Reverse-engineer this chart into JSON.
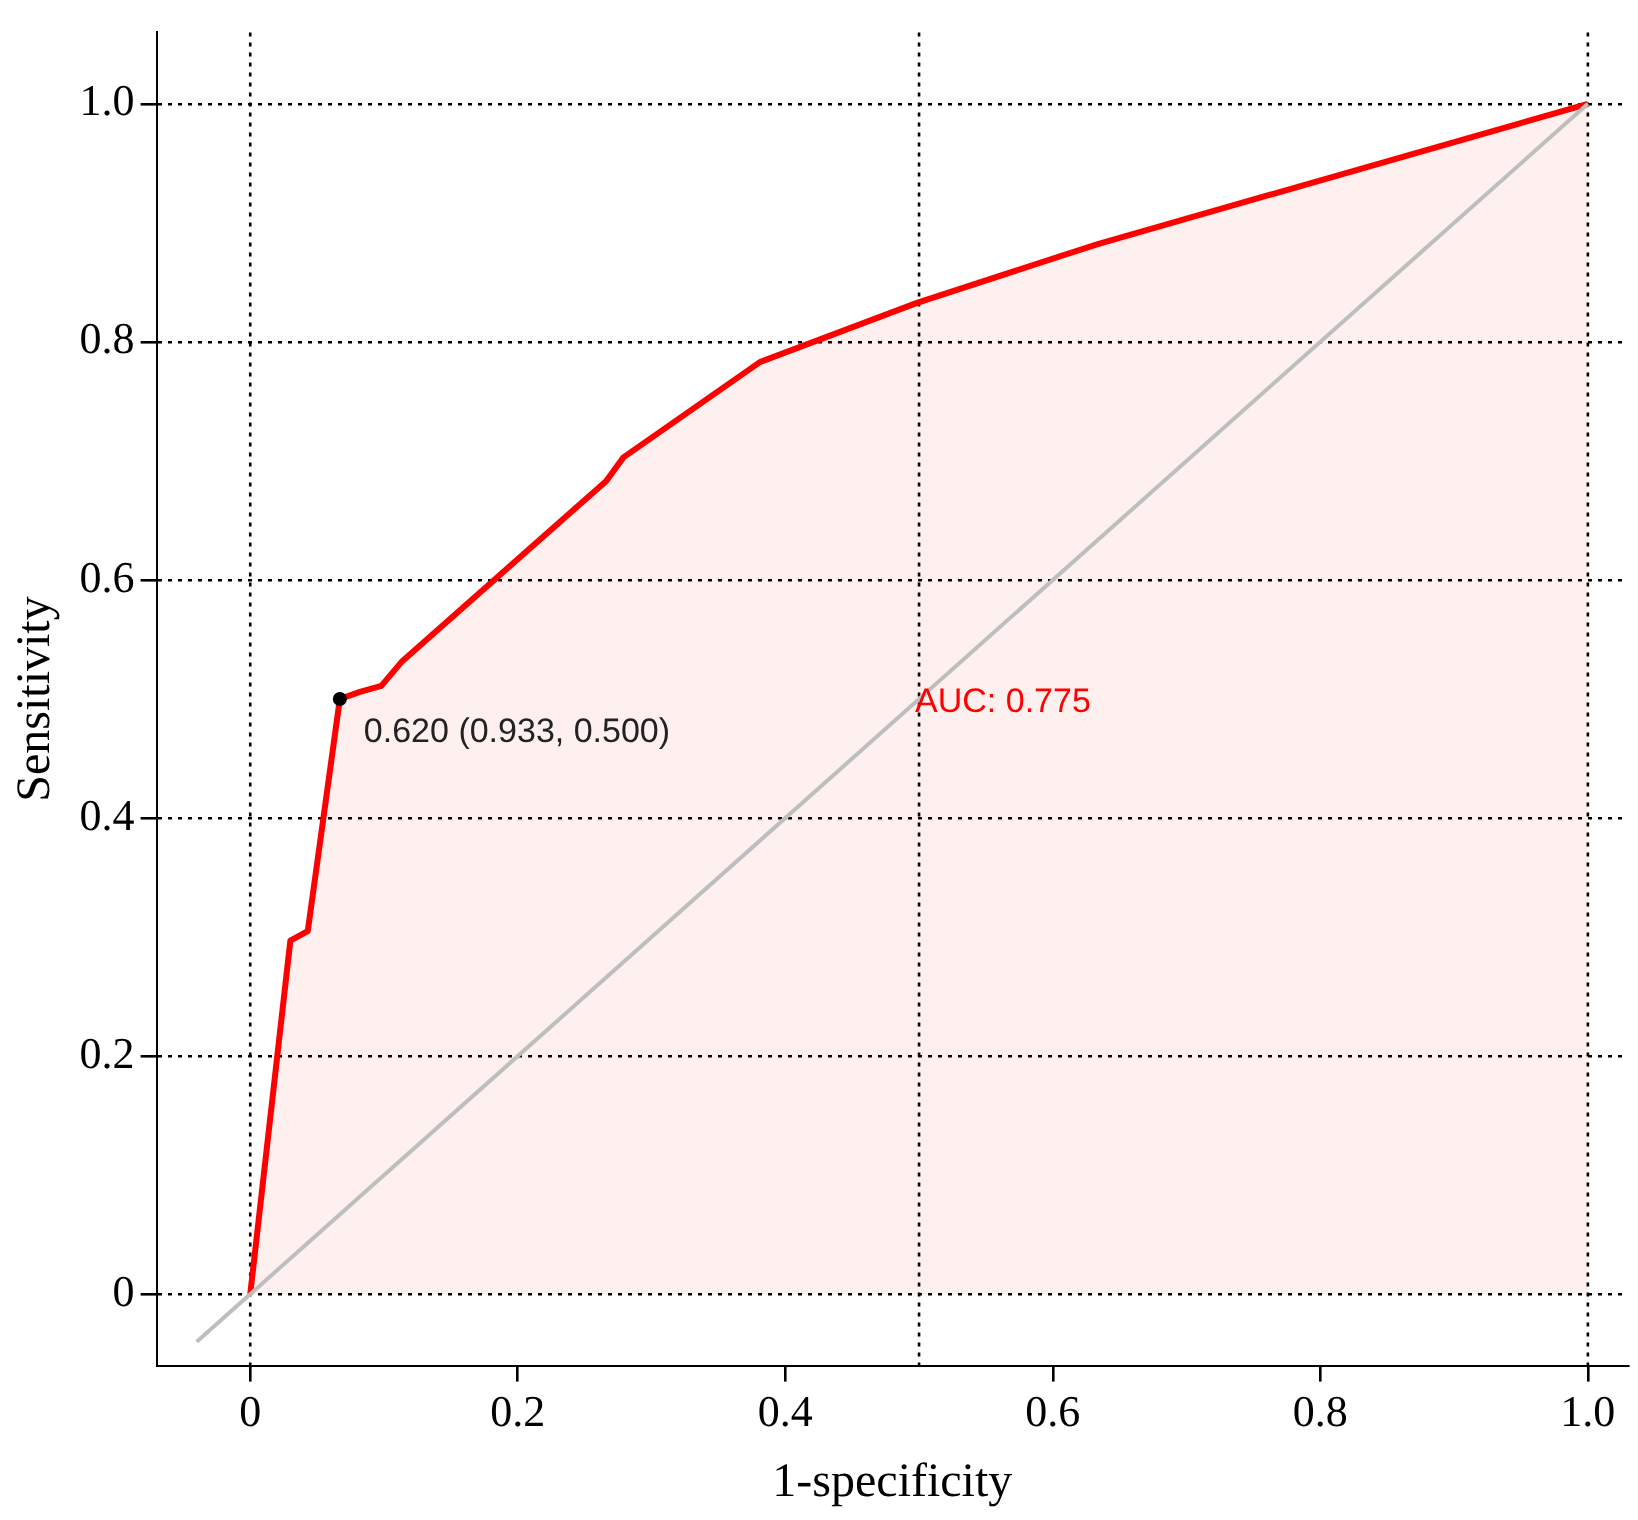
{
  "chart_data": {
    "type": "area",
    "xlabel": "1-specificity",
    "ylabel": "Sensitivity",
    "xlim": [
      -0.07,
      1.03
    ],
    "ylim": [
      -0.06,
      1.06
    ],
    "xticks": [
      {
        "value": 0,
        "label": "0"
      },
      0.2,
      0.4,
      0.6,
      0.8,
      {
        "value": 1,
        "label": "1.0"
      }
    ],
    "yticks": [
      {
        "value": 0,
        "label": "0"
      },
      0.2,
      0.4,
      0.6,
      0.8,
      {
        "value": 1,
        "label": "1.0"
      }
    ],
    "grid": "y",
    "legend": false,
    "ref_lines": [
      {
        "axis": "x",
        "value": 0,
        "color": "#000000",
        "line_style": "dotted"
      },
      {
        "axis": "x",
        "value": 0.5,
        "color": "#000000",
        "line_style": "dotted"
      },
      {
        "axis": "x",
        "value": 1,
        "color": "#000000",
        "line_style": "dotted"
      }
    ],
    "series": [
      {
        "type": "area",
        "color": "#ff0000",
        "x": [
          0,
          0.03,
          0.043,
          0.067,
          0.082,
          0.098,
          0.113,
          0.266,
          0.279,
          0.381,
          0.499,
          0.633,
          1
        ],
        "values": [
          0,
          0.297,
          0.305,
          0.5,
          0.506,
          0.511,
          0.531,
          0.683,
          0.703,
          0.783,
          0.833,
          0.882,
          1
        ]
      },
      {
        "type": "line",
        "color": "#bebebe",
        "x": [
          -0.04,
          1
        ],
        "values": [
          -0.04,
          1
        ]
      },
      {
        "type": "scatter",
        "color": "#000000",
        "x": [
          0.067
        ],
        "values": [
          0.5
        ]
      }
    ],
    "annotations": [
      {
        "text": "0.620 (0.933, 0.500)",
        "x": 0.067,
        "y": 0.5
      },
      {
        "text": "AUC: 0.775",
        "x": 0.5,
        "y": 0.48
      }
    ]
  }
}
